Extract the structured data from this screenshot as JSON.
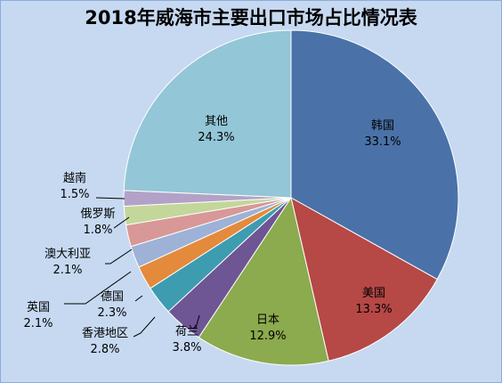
{
  "chart_data": {
    "type": "pie",
    "title": "2018年威海市主要出口市场占比情况表",
    "slices": [
      {
        "name": "韩国",
        "value": 33.1,
        "label": "33.1%",
        "color": "#4a72a8"
      },
      {
        "name": "美国",
        "value": 13.3,
        "label": "13.3%",
        "color": "#b64846"
      },
      {
        "name": "日本",
        "value": 12.9,
        "label": "12.9%",
        "color": "#8caa4e"
      },
      {
        "name": "荷兰",
        "value": 3.8,
        "label": "3.8%",
        "color": "#6e5594"
      },
      {
        "name": "香港地区",
        "value": 2.8,
        "label": "2.8%",
        "color": "#3d9cb0"
      },
      {
        "name": "德国",
        "value": 2.3,
        "label": "2.3%",
        "color": "#e48a3c"
      },
      {
        "name": "英国",
        "value": 2.1,
        "label": "2.1%",
        "color": "#9db2d6"
      },
      {
        "name": "澳大利亚",
        "value": 2.1,
        "label": "2.1%",
        "color": "#d89897"
      },
      {
        "name": "俄罗斯",
        "value": 1.8,
        "label": "1.8%",
        "color": "#c3d79b"
      },
      {
        "name": "越南",
        "value": 1.5,
        "label": "1.5%",
        "color": "#b3a2c7"
      },
      {
        "name": "其他",
        "value": 24.3,
        "label": "24.3%",
        "color": "#93c6d6"
      }
    ],
    "legend": "none"
  }
}
